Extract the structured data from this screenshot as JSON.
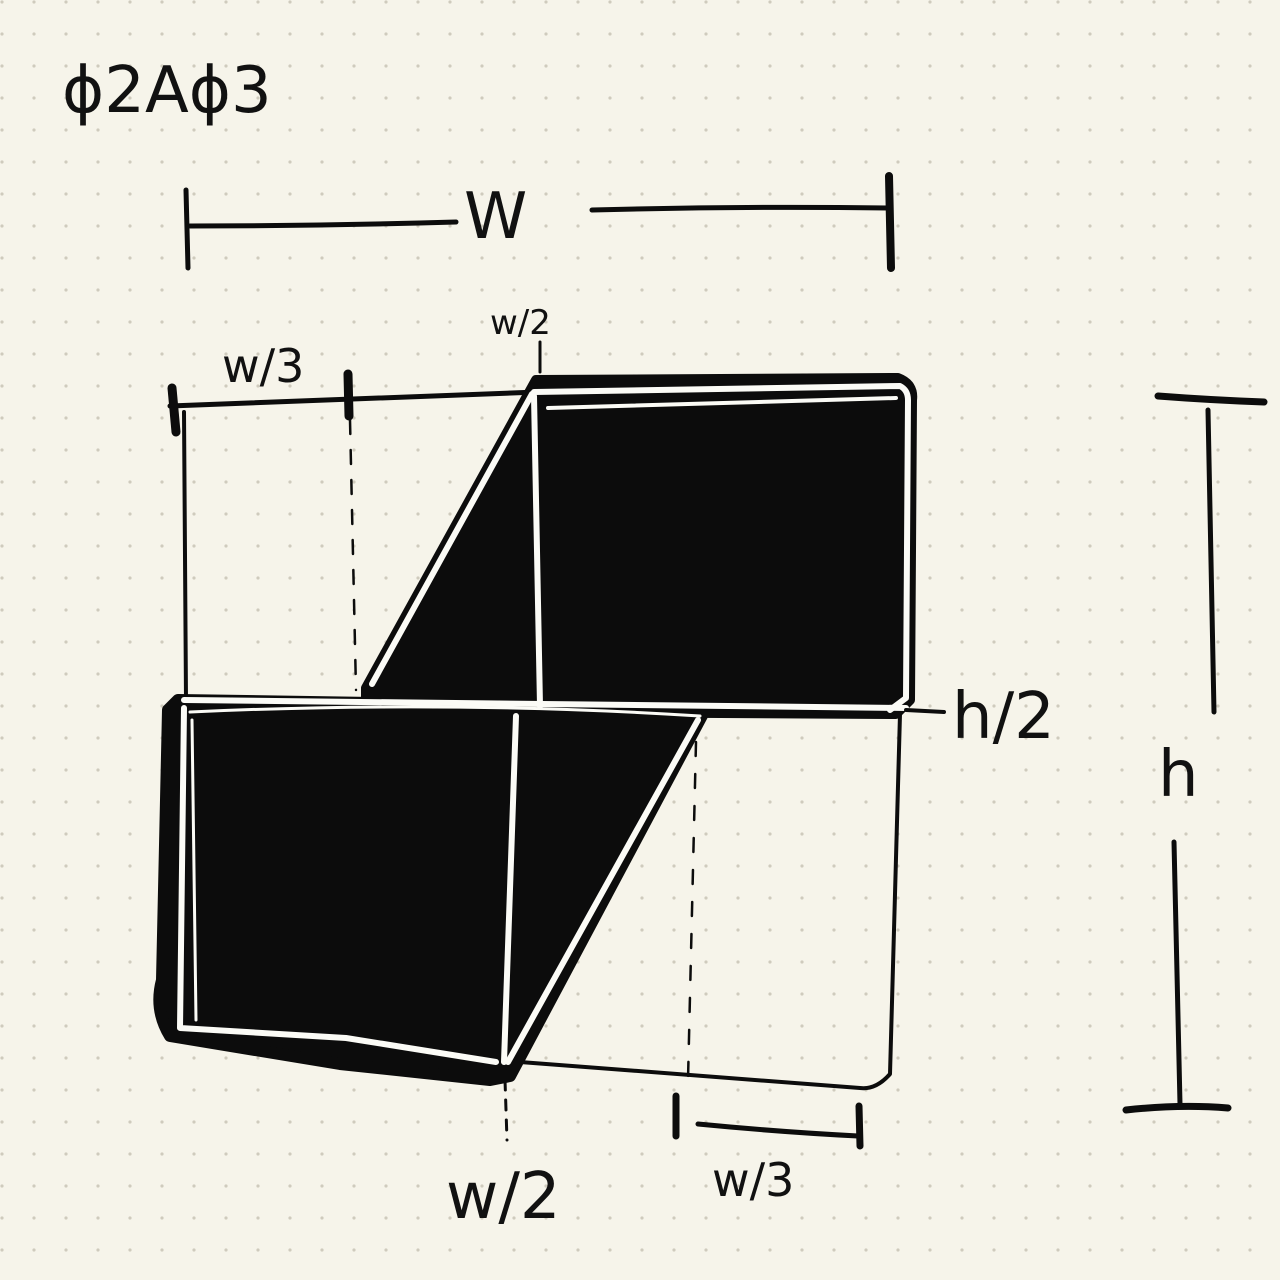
{
  "title": "ϕ2Aϕ3",
  "labels": {
    "width_total": "W",
    "width_third_top": "w/3",
    "width_half_top": "w/2",
    "height_half": "h/2",
    "height_total": "h",
    "width_half_bottom": "w/2",
    "width_third_bottom": "w/3"
  },
  "colors": {
    "paper": "#f6f4ea",
    "dot_grid": "#cfcbbd",
    "ink": "#0c0c0c",
    "highlight": "#fbfbf6"
  }
}
